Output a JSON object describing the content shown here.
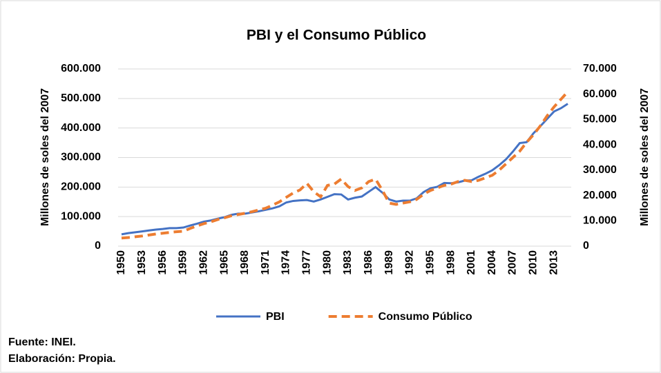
{
  "chart_data": {
    "type": "line",
    "title": "PBI y el Consumo Público",
    "y_label": "Millones de soles del 2007",
    "y2_label": "Millones de soles del 2007",
    "footnotes": [
      "Fuente: INEI.",
      "Elaboración: Propia."
    ],
    "categories": [
      "1950",
      null,
      null,
      "1953",
      null,
      null,
      "1956",
      null,
      null,
      "1959",
      null,
      null,
      "1962",
      null,
      null,
      "1965",
      null,
      null,
      "1968",
      null,
      null,
      "1971",
      null,
      null,
      "1974",
      null,
      null,
      "1977",
      null,
      null,
      "1980",
      null,
      null,
      "1983",
      null,
      null,
      "1986",
      null,
      null,
      "1989",
      null,
      null,
      "1992",
      null,
      null,
      "1995",
      null,
      null,
      "1998",
      null,
      null,
      "2001",
      null,
      null,
      "2004",
      null,
      null,
      "2007",
      null,
      null,
      "2010",
      null,
      null,
      "2013",
      null,
      null
    ],
    "series": [
      {
        "name": "PBI",
        "color": "#4472c4",
        "dashed": false,
        "axis": "y",
        "values": [
          40000,
          44000,
          47000,
          50000,
          53000,
          56000,
          58000,
          61000,
          61000,
          63000,
          70000,
          76000,
          83000,
          87000,
          93000,
          98000,
          106000,
          110000,
          110000,
          114000,
          118000,
          123000,
          128000,
          135000,
          148000,
          153000,
          155000,
          156000,
          151000,
          158000,
          167000,
          176000,
          175000,
          158000,
          164000,
          168000,
          184000,
          200000,
          181000,
          158000,
          151000,
          154000,
          154000,
          162000,
          183000,
          196000,
          201000,
          214000,
          213000,
          216000,
          222000,
          223000,
          235000,
          245000,
          257000,
          274000,
          294000,
          320000,
          349000,
          352000,
          382000,
          406000,
          431000,
          456000,
          467000,
          482000
        ]
      },
      {
        "name": "Consumo Público",
        "color": "#ed7d31",
        "dashed": true,
        "axis": "y2",
        "values": [
          3200,
          3400,
          3700,
          4000,
          4400,
          4800,
          5100,
          5400,
          5700,
          5900,
          7000,
          8000,
          8900,
          9600,
          10500,
          11200,
          12000,
          12500,
          13000,
          13600,
          14300,
          15000,
          16200,
          17500,
          19300,
          21000,
          22200,
          24800,
          21500,
          19500,
          24000,
          24500,
          26500,
          23500,
          22000,
          23000,
          25500,
          26500,
          22000,
          17000,
          16500,
          17000,
          17500,
          18500,
          20500,
          22000,
          23000,
          24000,
          24500,
          25500,
          26000,
          25500,
          26000,
          27000,
          28000,
          30000,
          32500,
          35000,
          37500,
          41000,
          44000,
          47500,
          51500,
          55000,
          58000,
          61000
        ]
      }
    ],
    "ylim": [
      0,
      600000
    ],
    "yticks": [
      0,
      {
        "value": 100000,
        "label": "100.000"
      },
      {
        "value": 200000,
        "label": "200.000"
      },
      {
        "value": 300000,
        "label": "300.000"
      },
      {
        "value": 400000,
        "label": "400.000"
      },
      {
        "value": 500000,
        "label": "500.000"
      },
      {
        "value": 600000,
        "label": "600.000"
      }
    ],
    "y2lim": [
      0,
      70000
    ],
    "y2ticks": [
      0,
      {
        "value": 10000,
        "label": "10.000"
      },
      {
        "value": 20000,
        "label": "20.000"
      },
      {
        "value": 30000,
        "label": "30.000"
      },
      {
        "value": 40000,
        "label": "40.000"
      },
      {
        "value": 50000,
        "label": "50.000"
      },
      {
        "value": 60000,
        "label": "60.000"
      },
      {
        "value": 70000,
        "label": "70.000"
      }
    ],
    "grid": true,
    "legend": "bottom"
  }
}
